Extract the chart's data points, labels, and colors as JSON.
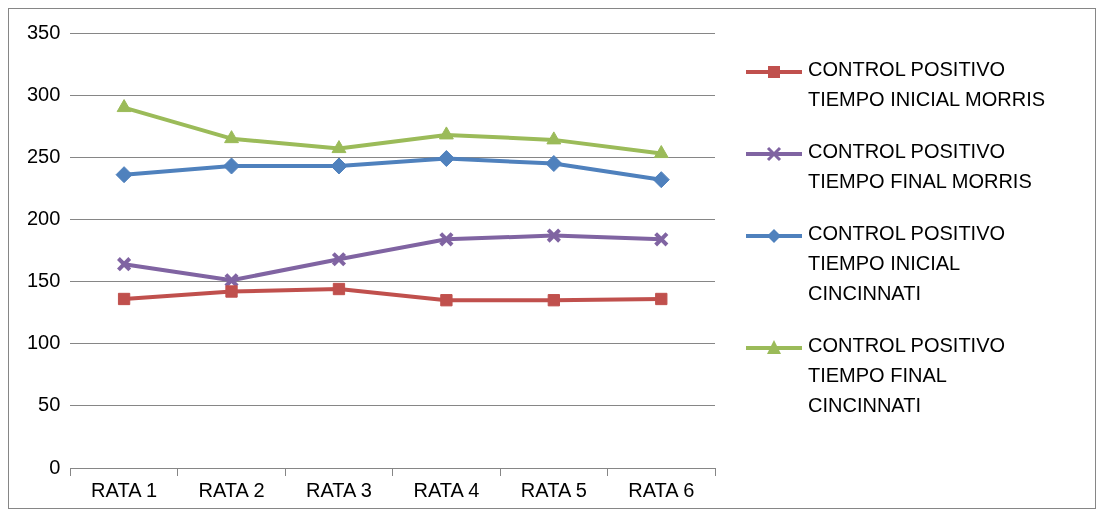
{
  "chart_data": {
    "type": "line",
    "categories": [
      "RATA 1",
      "RATA 2",
      "RATA 3",
      "RATA 4",
      "RATA 5",
      "RATA 6"
    ],
    "ylim": [
      0,
      350
    ],
    "yticks": [
      0,
      50,
      100,
      150,
      200,
      250,
      300,
      350
    ],
    "grid": "y",
    "legend": "right",
    "line_style": "solid",
    "series": [
      {
        "name": "CONTROL POSITIVO TIEMPO INICIAL MORRIS",
        "color": "#c0504d",
        "marker": "square",
        "values": [
          136,
          142,
          144,
          135,
          135,
          136
        ]
      },
      {
        "name": "CONTROL POSITIVO TIEMPO FINAL MORRIS",
        "color": "#8064a2",
        "marker": "cross",
        "values": [
          164,
          151,
          168,
          184,
          187,
          184
        ]
      },
      {
        "name": "CONTROL POSITIVO TIEMPO INICIAL CINCINNATI",
        "color": "#4f81bd",
        "marker": "diamond",
        "values": [
          236,
          243,
          243,
          249,
          245,
          232
        ]
      },
      {
        "name": "CONTROL POSITIVO TIEMPO FINAL CINCINNATI",
        "color": "#9bbb59",
        "marker": "triangle",
        "values": [
          290,
          265,
          257,
          268,
          264,
          253
        ]
      }
    ]
  }
}
